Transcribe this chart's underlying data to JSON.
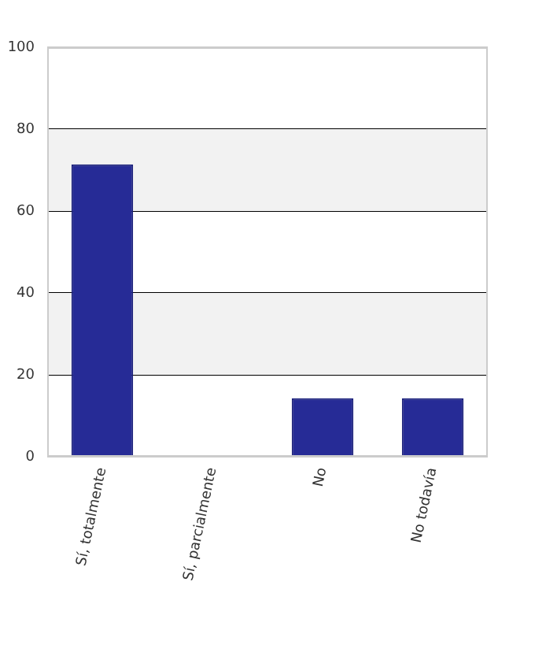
{
  "chart_data": {
    "type": "bar",
    "categories": [
      "Sí, totalmente",
      "Sí, parcialmente",
      "No",
      "No todavía"
    ],
    "values": [
      71.4,
      0,
      14.3,
      14.3
    ],
    "color": "#262b96",
    "ylim": [
      0,
      100
    ],
    "yticks": [
      0,
      20,
      40,
      60,
      80,
      100
    ],
    "grid": "y",
    "bands": [
      {
        "axis": "y",
        "from": 20,
        "to": 40,
        "color": "#f2f2f2"
      },
      {
        "axis": "y",
        "from": 60,
        "to": 80,
        "color": "#f2f2f2"
      }
    ]
  }
}
